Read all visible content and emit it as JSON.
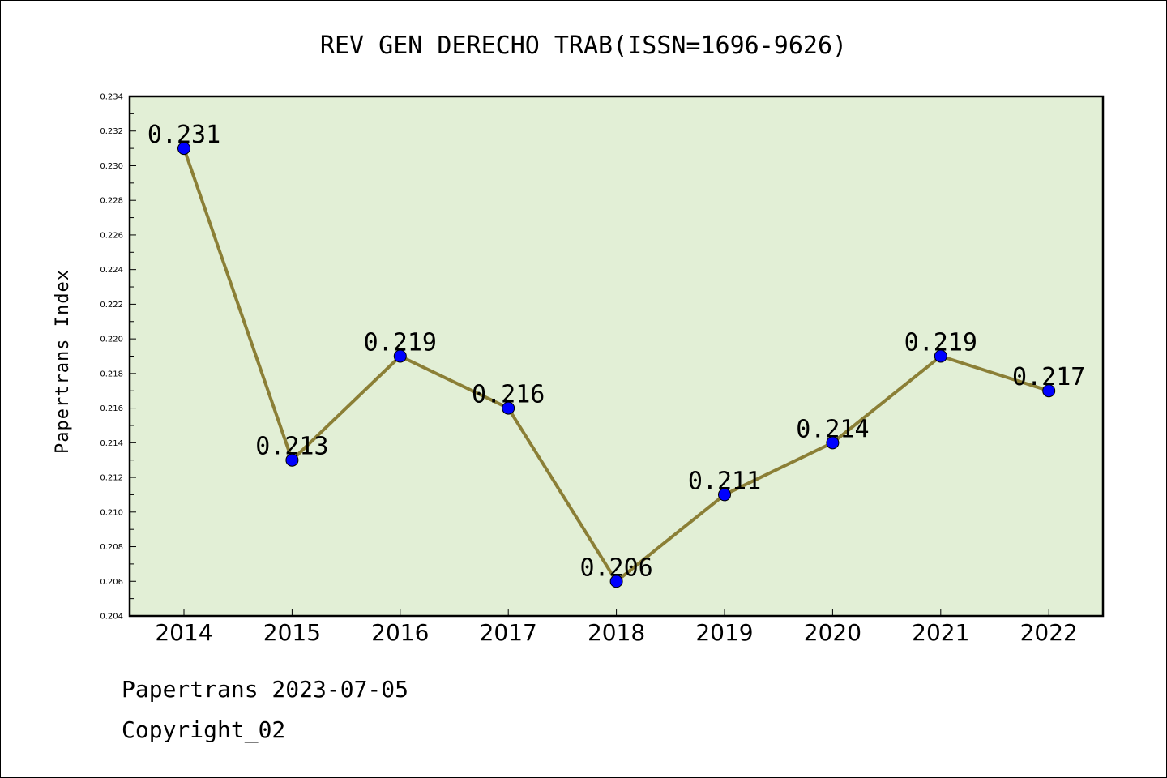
{
  "chart_data": {
    "type": "line",
    "title": "REV GEN DERECHO TRAB(ISSN=1696-9626)",
    "xlabel": "",
    "ylabel": "Papertrans Index",
    "categories": [
      "2014",
      "2015",
      "2016",
      "2017",
      "2018",
      "2019",
      "2020",
      "2021",
      "2022"
    ],
    "series": [
      {
        "values": [
          0.231,
          0.213,
          0.219,
          0.216,
          0.206,
          0.211,
          0.214,
          0.219,
          0.217
        ],
        "data_labels": [
          "0.231",
          "0.213",
          "0.219",
          "0.216",
          "0.206",
          "0.211",
          "0.214",
          "0.219",
          "0.217"
        ]
      }
    ],
    "ylim": [
      0.204,
      0.234
    ],
    "yticks": [
      "0.204",
      "0.206",
      "0.208",
      "0.210",
      "0.212",
      "0.214",
      "0.216",
      "0.218",
      "0.220",
      "0.222",
      "0.224",
      "0.226",
      "0.228",
      "0.230",
      "0.232",
      "0.234"
    ],
    "grid": false,
    "legend": "none",
    "colors": {
      "plot_background": "#e2efd6",
      "line": "#8b7f36",
      "marker": "#0000ff"
    }
  },
  "footer": {
    "line1": "Papertrans 2023-07-05",
    "line2": "Copyright_02"
  }
}
